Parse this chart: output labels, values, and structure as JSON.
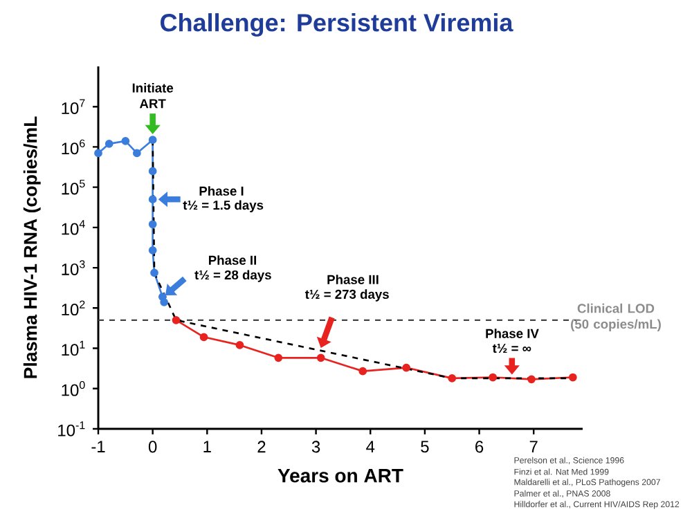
{
  "chart_data": {
    "type": "line",
    "title": "Challenge: Persistent Viremia",
    "xlabel": "Years on ART",
    "ylabel": "Plasma HIV-1 RNA (copies/mL",
    "log": "y",
    "xlim": [
      -1,
      7.9
    ],
    "ylim": [
      0.1,
      100000000
    ],
    "xticks": [
      -1,
      0,
      1,
      2,
      3,
      4,
      5,
      6,
      7
    ],
    "yticks": [
      {
        "value": 0.1,
        "label": "10$^{-1}$"
      },
      {
        "value": 1,
        "label": "10$^{0}$"
      },
      {
        "value": 10,
        "label": "10$^{1}$"
      },
      {
        "value": 100,
        "label": "10$^{2}$"
      },
      {
        "value": 1000,
        "label": "10$^{3}$"
      },
      {
        "value": 10000,
        "label": "10$^{4}$"
      },
      {
        "value": 100000,
        "label": "10$^{5}$"
      },
      {
        "value": 1000000,
        "label": "10$^{6}$"
      },
      {
        "value": 10000000,
        "label": "10$^{7}$"
      }
    ],
    "series": [
      {
        "color": "#3b7ddd",
        "marker": "circle",
        "x": [
          -1,
          -0.8,
          -0.5,
          -0.29,
          0,
          0,
          0,
          0,
          0,
          0.03,
          0.18,
          0.21
        ],
        "values": [
          700000,
          1200000,
          1400000,
          700000,
          1500000,
          250000,
          50000,
          12000,
          2700,
          750,
          190,
          140
        ]
      },
      {
        "color": "#e8231f",
        "marker": "circle",
        "x": [
          0.43,
          0.94,
          1.6,
          2.31,
          3.09,
          3.86,
          4.66,
          5.5,
          6.25,
          6.96,
          7.72
        ],
        "values": [
          50,
          19,
          12,
          5.8,
          5.8,
          2.7,
          3.3,
          1.8,
          1.9,
          1.7,
          1.9
        ]
      },
      {
        "color": "#000000",
        "marker": "none",
        "line_style": "dashed",
        "x": [
          0,
          0.03,
          0.43,
          5.5,
          7.72
        ],
        "values": [
          1500000,
          750,
          50,
          1.8,
          1.8
        ]
      }
    ],
    "ref_lines": [
      {
        "axis": "y",
        "value": 50,
        "label": "Clinical LOD (50 copies/mL)",
        "color": "#444444",
        "line_style": "dashed"
      }
    ],
    "annotations": [
      {
        "text": "Initiate ART",
        "x": 0,
        "y": 1500000
      },
      "Phase I",
      {
        "text": "t½ = 1.5 days",
        "x": 0,
        "y": 50000
      },
      "Phase II",
      {
        "text": "t½ = 28 days",
        "x": 0.18,
        "y": 190
      },
      "Phase III",
      {
        "text": "t½ = 273 days",
        "x": 3.09,
        "y": 8.7
      },
      "Phase IV",
      {
        "text": "t½ = ∞",
        "x": 6.55,
        "y": 1.9
      },
      "Perelson et al., Science 1996",
      "Finzi et al. Nat Med 1999",
      "Maldarelli et al., PLoS Pathogens 2007",
      "Palmer et al., PNAS 2008",
      "Hilldorfer et al., Current HIV/AIDS Rep 2012"
    ]
  }
}
